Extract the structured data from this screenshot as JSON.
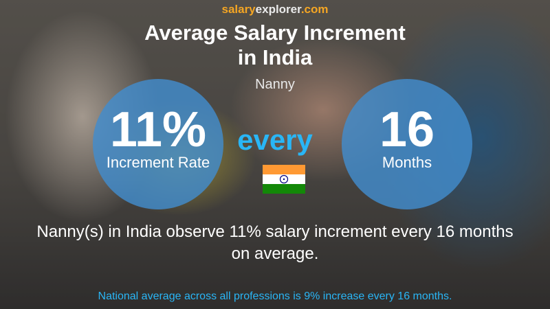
{
  "brand": {
    "salary": "salary",
    "explorer": "explorer",
    "tld": ".com"
  },
  "title_lines": [
    "Average Salary Increment",
    "in India"
  ],
  "subtitle": "Nanny",
  "increment": {
    "value": "11%",
    "label": "Increment Rate"
  },
  "connector": "every",
  "period": {
    "value": "16",
    "label": "Months"
  },
  "summary": "Nanny(s) in India observe 11% salary increment every 16 months on average.",
  "footer": "National average across all professions is 9% increase every 16 months."
}
